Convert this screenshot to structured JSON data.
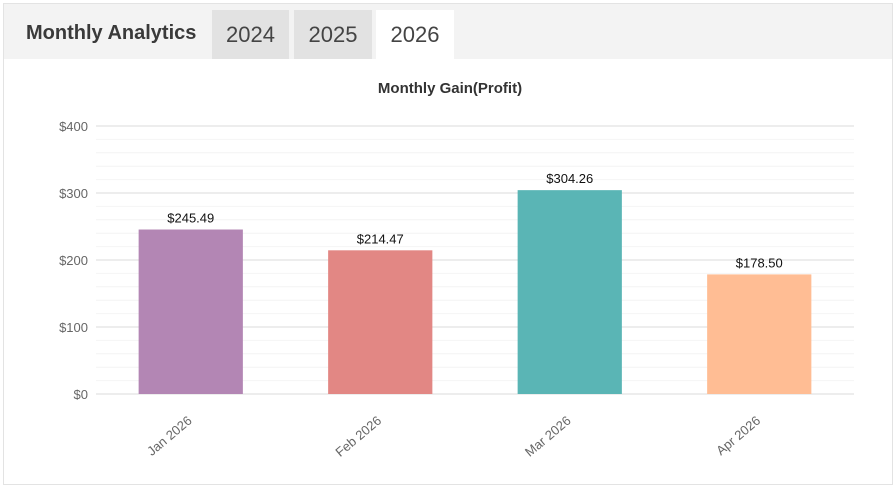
{
  "header": {
    "title": "Monthly Analytics",
    "tabs": [
      {
        "label": "2024",
        "active": false
      },
      {
        "label": "2025",
        "active": false
      },
      {
        "label": "2026",
        "active": true
      }
    ]
  },
  "chart_data": {
    "type": "bar",
    "title": "Monthly Gain(Profit)",
    "categories": [
      "Jan 2026",
      "Feb 2026",
      "Mar 2026",
      "Apr 2026"
    ],
    "values": [
      245.49,
      214.47,
      304.26,
      178.5
    ],
    "data_labels": [
      "$245.49",
      "$214.47",
      "$304.26",
      "$178.50"
    ],
    "bar_colors": [
      "#b386b4",
      "#e28784",
      "#5ab5b5",
      "#ffbd94"
    ],
    "ylim": [
      0,
      400
    ],
    "yticks": [
      0,
      100,
      200,
      300,
      400
    ],
    "ytick_labels": [
      "$0",
      "$100",
      "$200",
      "$300",
      "$400"
    ],
    "grid": true,
    "legend": "none"
  }
}
